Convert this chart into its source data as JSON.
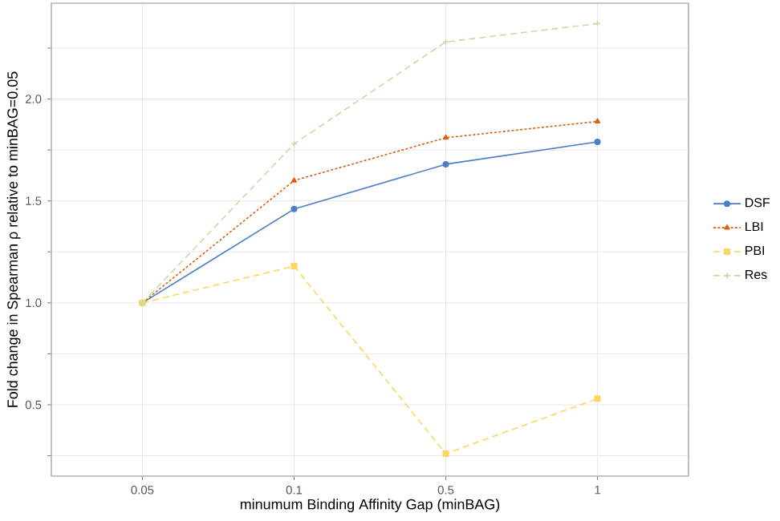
{
  "chart_data": {
    "type": "line",
    "xlabel": "minumum Binding Affinity Gap (minBAG)",
    "ylabel": "Fold change in Spearman ρ relative to minBAG=0.05",
    "categories": [
      "0.05",
      "0.1",
      "0.5",
      "1"
    ],
    "series": [
      {
        "name": "DSF",
        "color": "#4a7fc7",
        "values": [
          1.0,
          1.46,
          1.68,
          1.79
        ],
        "marker": "circle",
        "line_style": "solid"
      },
      {
        "name": "LBI",
        "color": "#d95f0e",
        "values": [
          1.0,
          1.6,
          1.81,
          1.89
        ],
        "marker": "triangle",
        "line_style": "dotted"
      },
      {
        "name": "PBI",
        "color": "#fed65c",
        "values": [
          1.0,
          1.18,
          0.26,
          0.53
        ],
        "marker": "square",
        "line_style": "dashed"
      },
      {
        "name": "Res",
        "color": "#c5dba3",
        "values": [
          1.0,
          1.78,
          2.28,
          2.37
        ],
        "marker": "cross",
        "line_style": "dashed"
      }
    ],
    "ylim": [
      0.15,
      2.47
    ],
    "yticks": [
      {
        "value": 0.25,
        "label": null
      },
      0.5,
      {
        "value": 0.75,
        "label": null
      },
      {
        "value": 1,
        "label": "1.0"
      },
      {
        "value": 1.25,
        "label": null
      },
      1.5,
      {
        "value": 1.75,
        "label": null
      },
      {
        "value": 2,
        "label": "2.0"
      },
      {
        "value": 2.25,
        "label": null
      }
    ],
    "grid": true,
    "legend": "right"
  }
}
